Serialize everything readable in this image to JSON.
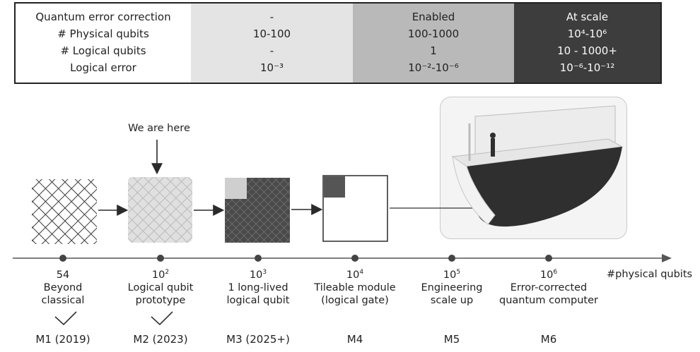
{
  "table": {
    "rows": [
      {
        "label": "Quantum error correction",
        "values": [
          "-",
          "Enabled",
          "At scale"
        ]
      },
      {
        "label": "# Physical qubits",
        "values": [
          "10-100",
          "100-1000",
          "10⁴-10⁶"
        ]
      },
      {
        "label": "# Logical qubits",
        "values": [
          "-",
          "1",
          "10 - 1000+"
        ]
      },
      {
        "label": "Logical error",
        "values": [
          "10⁻³",
          "10⁻²-10⁻⁶",
          "10⁻⁶-10⁻¹²"
        ]
      }
    ],
    "column_shades": [
      "#e4e4e4",
      "#b9b9b9",
      "#3d3d3d"
    ]
  },
  "pointer_label": "We are here",
  "axis_unit": "#physical qubits",
  "milestones": [
    {
      "qubits": "54",
      "desc1": "Beyond",
      "desc2": "classical",
      "name": "M1 (2019)",
      "done": true
    },
    {
      "qubits_base": "10",
      "qubits_exp": "2",
      "desc1": "Logical qubit",
      "desc2": "prototype",
      "name": "M2 (2023)",
      "done": true
    },
    {
      "qubits_base": "10",
      "qubits_exp": "3",
      "desc1": "1 long-lived",
      "desc2": "logical qubit",
      "name": "M3 (2025+)",
      "done": false
    },
    {
      "qubits_base": "10",
      "qubits_exp": "4",
      "desc1": "Tileable module",
      "desc2": "(logical gate)",
      "name": "M4",
      "done": false
    },
    {
      "qubits_base": "10",
      "qubits_exp": "5",
      "desc1": "Engineering",
      "desc2": "scale up",
      "name": "M5",
      "done": false
    },
    {
      "qubits_base": "10",
      "qubits_exp": "6",
      "desc1": "Error-corrected",
      "desc2": "quantum computer",
      "name": "M6",
      "done": false
    }
  ]
}
